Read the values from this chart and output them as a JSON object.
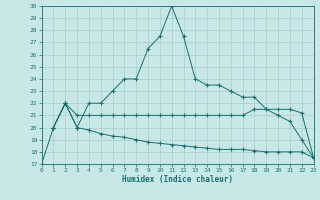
{
  "background_color": "#c8e8e8",
  "grid_color": "#a8cccc",
  "line_color": "#1a7070",
  "xlabel": "Humidex (Indice chaleur)",
  "ylim": [
    17,
    30
  ],
  "xlim": [
    0,
    23
  ],
  "yticks": [
    17,
    18,
    19,
    20,
    21,
    22,
    23,
    24,
    25,
    26,
    27,
    28,
    29,
    30
  ],
  "xticks": [
    0,
    1,
    2,
    3,
    4,
    5,
    6,
    7,
    8,
    9,
    10,
    11,
    12,
    13,
    14,
    15,
    16,
    17,
    18,
    19,
    20,
    21,
    22,
    23
  ],
  "s1_x": [
    0,
    1,
    2,
    3,
    4,
    5,
    6,
    7,
    8,
    9,
    10,
    11,
    12,
    13,
    14,
    15,
    16,
    17,
    18,
    19,
    20,
    21,
    22,
    23
  ],
  "s1_y": [
    17,
    20,
    22,
    20,
    22,
    22,
    23,
    24,
    24,
    26.5,
    27.5,
    30,
    27.5,
    24,
    23.5,
    23.5,
    23,
    22.5,
    22.5,
    21.5,
    21,
    20.5,
    19,
    17.5
  ],
  "s2_x": [
    1,
    2,
    3,
    4,
    5,
    6,
    7,
    8,
    9,
    10,
    11,
    12,
    13,
    14,
    15,
    16,
    17,
    18,
    19,
    20,
    21,
    22,
    23
  ],
  "s2_y": [
    20,
    22,
    21,
    21,
    21,
    21,
    21,
    21,
    21,
    21,
    21,
    21,
    21,
    21,
    21,
    21,
    21,
    21.5,
    21.5,
    21.5,
    21.5,
    21.2,
    17.5
  ],
  "s3_x": [
    1,
    2,
    3,
    4,
    5,
    6,
    7,
    8,
    9,
    10,
    11,
    12,
    13,
    14,
    15,
    16,
    17,
    18,
    19,
    20,
    21,
    22,
    23
  ],
  "s3_y": [
    20,
    22,
    20,
    19.8,
    19.5,
    19.3,
    19.2,
    19.0,
    18.8,
    18.7,
    18.6,
    18.5,
    18.4,
    18.3,
    18.2,
    18.2,
    18.2,
    18.1,
    18.0,
    18.0,
    18.0,
    18.0,
    17.5
  ]
}
